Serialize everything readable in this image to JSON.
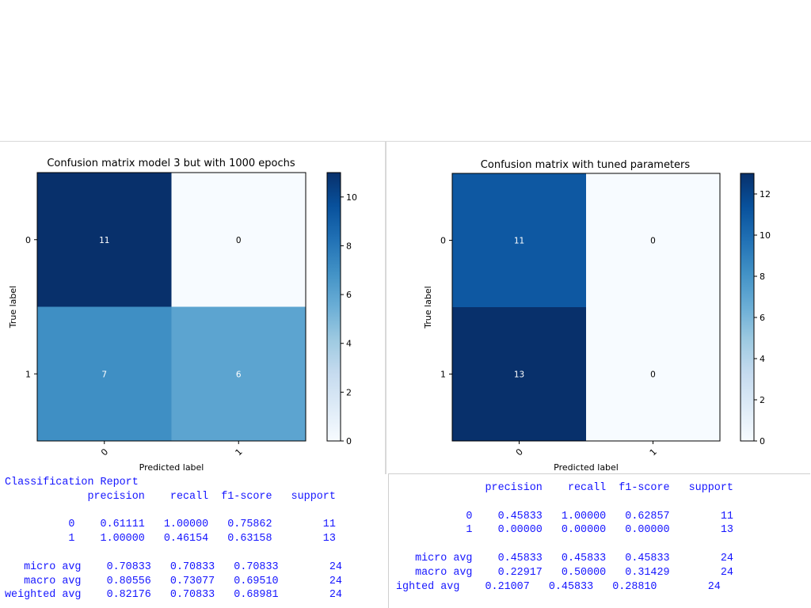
{
  "chart_data": [
    {
      "type": "heatmap",
      "title": "Confusion matrix model 3 but with 1000 epochs",
      "xlabel": "Predicted label",
      "ylabel": "True label",
      "x_ticks": [
        "0",
        "1"
      ],
      "y_ticks": [
        "0",
        "1"
      ],
      "matrix": [
        [
          11,
          0
        ],
        [
          7,
          6
        ]
      ],
      "colorbar": {
        "min": 0,
        "max": 11,
        "ticks": [
          0,
          2,
          4,
          6,
          8,
          10
        ]
      },
      "colormap": "Blues"
    },
    {
      "type": "heatmap",
      "title": "Confusion matrix with tuned parameters",
      "xlabel": "Predicted label",
      "ylabel": "True label",
      "x_ticks": [
        "0",
        "1"
      ],
      "y_ticks": [
        "0",
        "1"
      ],
      "matrix": [
        [
          11,
          0
        ],
        [
          13,
          0
        ]
      ],
      "colorbar": {
        "min": 0,
        "max": 13,
        "ticks": [
          0,
          2,
          4,
          6,
          8,
          10,
          12
        ]
      },
      "colormap": "Blues"
    }
  ],
  "reports": [
    {
      "lines": [
        "Classification Report",
        "             precision    recall  f1-score   support",
        "",
        "          0    0.61111   1.00000   0.75862        11",
        "          1    1.00000   0.46154   0.63158        13",
        "",
        "   micro avg    0.70833   0.70833   0.70833        24",
        "   macro avg    0.80556   0.73077   0.69510        24",
        "weighted avg    0.82176   0.70833   0.68981        24"
      ]
    },
    {
      "lines": [
        "              precision    recall  f1-score   support",
        "",
        "           0    0.45833   1.00000   0.62857        11",
        "           1    0.00000   0.00000   0.00000        13",
        "",
        "   micro avg    0.45833   0.45833   0.45833        24",
        "   macro avg    0.22917   0.50000   0.31429        24",
        "ighted avg    0.21007   0.45833   0.28810        24"
      ]
    }
  ],
  "colors": {
    "report_text": "#1515ff",
    "blues_low": "#f7fbff",
    "blues_high": "#08306b"
  }
}
